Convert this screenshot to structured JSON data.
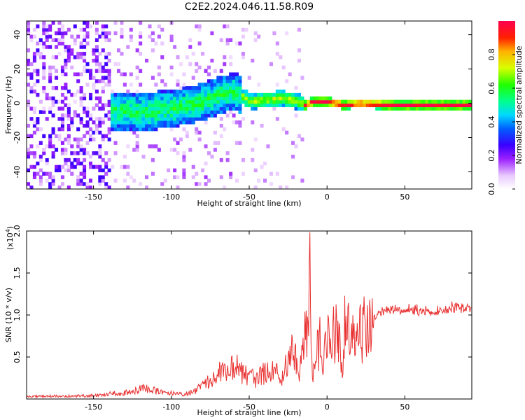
{
  "title": "C2E2.2024.046.11.58.R09",
  "chart_data": [
    {
      "type": "heatmap",
      "xlabel": "Height of straight line (km)",
      "ylabel": "Frequency (Hz)",
      "xlim": [
        -193,
        93
      ],
      "ylim": [
        -50,
        48
      ],
      "x_ticks": [
        -150,
        -100,
        -50,
        0,
        50
      ],
      "y_ticks": [
        -40,
        -20,
        0,
        20,
        40
      ],
      "colorbar": {
        "label": "Normalized spectral amplitude",
        "range": [
          0.0,
          1.0
        ],
        "ticks": [
          "0.0",
          "0.2",
          "0.4",
          "0.6",
          "0.8"
        ],
        "colormap": "rainbow (white-violet-blue-cyan-green-yellow-red)"
      },
      "ridge_frequency": {
        "x": [
          -140,
          -120,
          -100,
          -80,
          -70,
          -60,
          -50,
          -40,
          -30,
          -20,
          -15,
          -10,
          0,
          10,
          20,
          40,
          60,
          80,
          93
        ],
        "y": [
          -5,
          -6,
          -4,
          0,
          4,
          6,
          0,
          1,
          2,
          0,
          -2,
          0,
          0,
          -2,
          -1,
          -2,
          -2,
          -2,
          -2
        ]
      }
    },
    {
      "type": "line",
      "xlabel": "Height of straight line (km)",
      "ylabel": "SNR (10 * v/v)",
      "ylabel_scale": "(x10^4)",
      "scale_text": "(x10",
      "scale_exp": "4",
      "scale_close": ")",
      "xlim": [
        -193,
        93
      ],
      "ylim": [
        0,
        2.0
      ],
      "x_ticks": [
        -150,
        -100,
        -50,
        0,
        50
      ],
      "y_ticks": [
        "0.5",
        "1.0",
        "1.5",
        "2.0"
      ],
      "series": [
        {
          "color": "#e83030",
          "x": [
            -193,
            -180,
            -160,
            -145,
            -135,
            -125,
            -118,
            -112,
            -105,
            -98,
            -92,
            -85,
            -78,
            -72,
            -66,
            -60,
            -55,
            -50,
            -45,
            -40,
            -35,
            -30,
            -25,
            -22,
            -20,
            -18,
            -16,
            -14,
            -12,
            -11,
            -10,
            -8,
            -6,
            -4,
            -2,
            0,
            2,
            4,
            6,
            8,
            10,
            12,
            14,
            16,
            18,
            20,
            25,
            30,
            35,
            40,
            50,
            60,
            70,
            80,
            85,
            88,
            93
          ],
          "y": [
            0.03,
            0.04,
            0.04,
            0.05,
            0.08,
            0.09,
            0.15,
            0.12,
            0.08,
            0.07,
            0.06,
            0.1,
            0.2,
            0.3,
            0.4,
            0.45,
            0.35,
            0.3,
            0.25,
            0.35,
            0.4,
            0.3,
            0.5,
            0.6,
            0.5,
            0.2,
            0.6,
            0.85,
            1.1,
            2.0,
            0.5,
            0.3,
            0.7,
            0.8,
            0.5,
            0.8,
            0.75,
            0.85,
            0.9,
            0.7,
            0.3,
            1.2,
            0.85,
            0.8,
            0.85,
            0.9,
            0.95,
            1.0,
            1.05,
            1.08,
            1.08,
            1.07,
            1.05,
            1.1,
            1.12,
            1.1,
            1.12
          ]
        }
      ]
    }
  ]
}
